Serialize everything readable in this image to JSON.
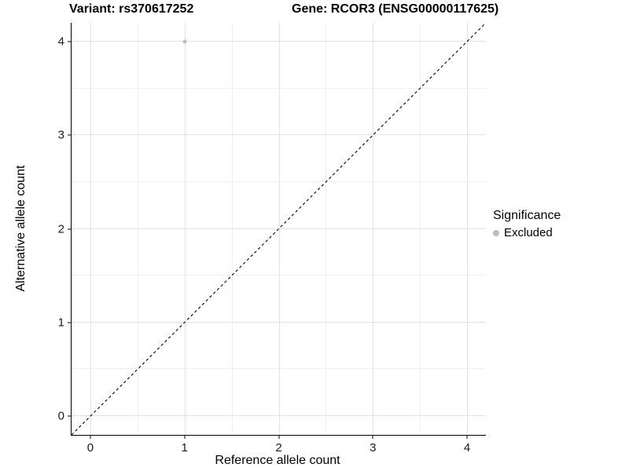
{
  "chart_data": {
    "type": "scatter",
    "title": "Variant: rs370617252        Gene: RCOR3 (ENSG00000117625)",
    "title_left": "Variant: rs370617252",
    "title_right": "Gene: RCOR3 (ENSG00000117625)",
    "xlabel": "Reference allele count",
    "ylabel": "Alternative allele count",
    "xlim": [
      -0.2,
      4.2
    ],
    "ylim": [
      -0.2,
      4.2
    ],
    "x_major_ticks": [
      0,
      1,
      2,
      3,
      4
    ],
    "y_major_ticks": [
      0,
      1,
      2,
      3,
      4
    ],
    "x_minor_gridlines": [
      0.5,
      1.5,
      2.5,
      3.5
    ],
    "y_minor_gridlines": [
      0.5,
      1.5,
      2.5,
      3.5
    ],
    "grid": "major and minor gridlines, no top/right border",
    "series": [
      {
        "name": "Excluded",
        "marker": "circle",
        "color": "#bdbdbd",
        "points": [
          {
            "x": 1,
            "y": 4
          }
        ]
      }
    ],
    "reference_line": {
      "description": "identity line y = x, corner to corner",
      "style": "dashed",
      "color": "#000000"
    },
    "legend": {
      "title": "Significance",
      "position": "right",
      "items": [
        {
          "label": "Excluded",
          "color": "#bdbdbd",
          "marker": "circle"
        }
      ]
    }
  },
  "colors": {
    "background": "#ffffff",
    "grid_major": "#e2e2e2",
    "grid_minor": "#f0f0f0",
    "axis_line": "#000000",
    "tick_text": "#1a1a1a",
    "point": "#bdbdbd"
  }
}
